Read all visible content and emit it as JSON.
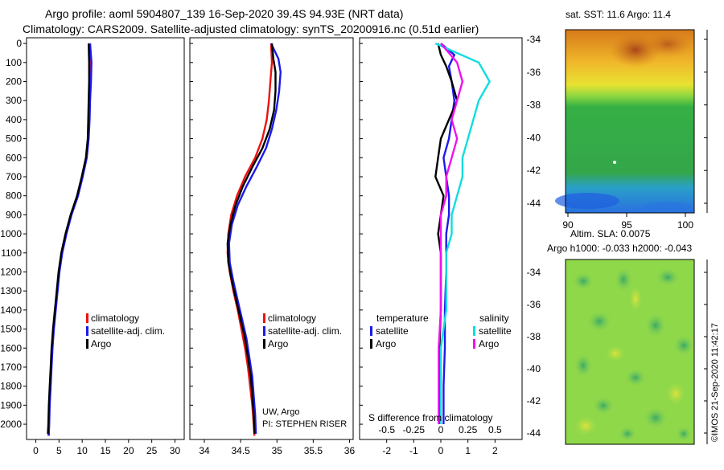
{
  "header": {
    "title_line1": "Argo profile: aoml 5904807_139 16-Sep-2020 39.4S 94.93E (NRT data)",
    "title_line2": "Climatology: CARS2009. Satellite-adjusted climatology: synTS_20200916.nc (0.51d earlier)"
  },
  "colors": {
    "climatology": "#ee1111",
    "satellite": "#1a1aee",
    "argo": "#000000",
    "satellite_s": "#11dddd",
    "argo_s": "#ee11ee"
  },
  "legend_a": {
    "clim": "climatology",
    "sat": "satellite-adj. clim.",
    "argo": "Argo"
  },
  "legend_c": {
    "temp_head": "temperature",
    "sal_head": "salinity",
    "sat": "satellite",
    "argo": "Argo",
    "sat_s": "satellite",
    "argo_s": "Argo"
  },
  "annotations": {
    "uw": "UW, Argo",
    "pi": "PI: STEPHEN RISER",
    "sdiff": "S difference from climatology"
  },
  "sst_panel": {
    "title": "sat. SST: 11.6 Argo: 11.4",
    "xticks": [
      "90",
      "95",
      "100"
    ],
    "yticks": [
      "-34",
      "-36",
      "-38",
      "-40",
      "-42",
      "-44"
    ]
  },
  "sla_panel": {
    "title1": "Altim. SLA: 0.0075",
    "title2": "Argo h1000: -0.033 h2000: -0.043",
    "yticks": [
      "-34",
      "-36",
      "-38",
      "-40",
      "-42",
      "-44"
    ],
    "credit": "©IMOS 21-Sep-2020 11:42:17"
  },
  "chart_data": [
    {
      "type": "line",
      "name": "temperature-profile",
      "xlabel": "",
      "ylabel": "",
      "xlim": [
        -2,
        32
      ],
      "ylim": [
        2080,
        -30
      ],
      "xticks": [
        "0",
        "5",
        "10",
        "15",
        "20",
        "25",
        "30"
      ],
      "yticks": [
        "0",
        "100",
        "200",
        "300",
        "400",
        "500",
        "600",
        "700",
        "800",
        "900",
        "1000",
        "1100",
        "1200",
        "1300",
        "1400",
        "1500",
        "1600",
        "1700",
        "1800",
        "1900",
        "2000"
      ],
      "series": [
        {
          "name": "climatology",
          "points": [
            [
              11.6,
              0
            ],
            [
              11.6,
              100
            ],
            [
              11.6,
              200
            ],
            [
              11.5,
              300
            ],
            [
              11.4,
              400
            ],
            [
              11.3,
              500
            ],
            [
              10.9,
              600
            ],
            [
              10.0,
              700
            ],
            [
              9.0,
              800
            ],
            [
              7.6,
              900
            ],
            [
              6.5,
              1000
            ],
            [
              5.6,
              1100
            ],
            [
              5.0,
              1200
            ],
            [
              4.6,
              1300
            ],
            [
              4.2,
              1400
            ],
            [
              3.8,
              1500
            ],
            [
              3.5,
              1600
            ],
            [
              3.3,
              1700
            ],
            [
              3.1,
              1800
            ],
            [
              2.9,
              1900
            ],
            [
              2.8,
              2000
            ],
            [
              2.7,
              2060
            ]
          ]
        },
        {
          "name": "satellite-adj. clim.",
          "points": [
            [
              11.7,
              0
            ],
            [
              12.0,
              100
            ],
            [
              11.9,
              200
            ],
            [
              11.7,
              300
            ],
            [
              11.6,
              400
            ],
            [
              11.4,
              500
            ],
            [
              11.0,
              600
            ],
            [
              10.1,
              700
            ],
            [
              9.1,
              800
            ],
            [
              7.7,
              900
            ],
            [
              6.6,
              1000
            ],
            [
              5.7,
              1100
            ],
            [
              5.1,
              1200
            ],
            [
              4.7,
              1300
            ],
            [
              4.3,
              1400
            ],
            [
              3.9,
              1500
            ],
            [
              3.6,
              1600
            ],
            [
              3.4,
              1700
            ],
            [
              3.2,
              1800
            ],
            [
              3.0,
              1900
            ],
            [
              2.9,
              2000
            ],
            [
              2.8,
              2060
            ]
          ]
        },
        {
          "name": "Argo",
          "points": [
            [
              11.4,
              0
            ],
            [
              11.5,
              100
            ],
            [
              11.5,
              200
            ],
            [
              11.4,
              300
            ],
            [
              11.3,
              400
            ],
            [
              11.2,
              500
            ],
            [
              10.8,
              600
            ],
            [
              9.9,
              700
            ],
            [
              8.9,
              800
            ],
            [
              7.5,
              900
            ],
            [
              6.4,
              1000
            ],
            [
              5.5,
              1100
            ],
            [
              4.9,
              1200
            ],
            [
              4.5,
              1300
            ],
            [
              4.1,
              1400
            ],
            [
              3.7,
              1500
            ],
            [
              3.4,
              1600
            ],
            [
              3.2,
              1700
            ],
            [
              3.0,
              1800
            ],
            [
              2.8,
              1900
            ],
            [
              2.7,
              2000
            ],
            [
              2.6,
              2050
            ]
          ]
        }
      ]
    },
    {
      "type": "line",
      "name": "salinity-profile",
      "xlim": [
        33.8,
        36.05
      ],
      "ylim": [
        2080,
        -30
      ],
      "xticks": [
        "34",
        "34.5",
        "35",
        "35.5",
        "36"
      ],
      "series": [
        {
          "name": "climatology",
          "points": [
            [
              34.92,
              0
            ],
            [
              34.93,
              100
            ],
            [
              34.91,
              200
            ],
            [
              34.89,
              300
            ],
            [
              34.86,
              400
            ],
            [
              34.8,
              500
            ],
            [
              34.7,
              600
            ],
            [
              34.56,
              700
            ],
            [
              34.45,
              800
            ],
            [
              34.37,
              900
            ],
            [
              34.33,
              1000
            ],
            [
              34.32,
              1100
            ],
            [
              34.35,
              1200
            ],
            [
              34.4,
              1300
            ],
            [
              34.46,
              1400
            ],
            [
              34.51,
              1500
            ],
            [
              34.56,
              1600
            ],
            [
              34.6,
              1700
            ],
            [
              34.63,
              1800
            ],
            [
              34.66,
              1900
            ],
            [
              34.68,
              2000
            ],
            [
              34.69,
              2060
            ]
          ]
        },
        {
          "name": "satellite-adj. clim.",
          "points": [
            [
              34.92,
              0
            ],
            [
              35.02,
              80
            ],
            [
              35.05,
              150
            ],
            [
              35.03,
              250
            ],
            [
              34.99,
              350
            ],
            [
              34.93,
              450
            ],
            [
              34.85,
              550
            ],
            [
              34.72,
              650
            ],
            [
              34.58,
              750
            ],
            [
              34.46,
              850
            ],
            [
              34.38,
              950
            ],
            [
              34.34,
              1050
            ],
            [
              34.35,
              1150
            ],
            [
              34.4,
              1250
            ],
            [
              34.46,
              1350
            ],
            [
              34.52,
              1450
            ],
            [
              34.58,
              1550
            ],
            [
              34.62,
              1650
            ],
            [
              34.66,
              1750
            ],
            [
              34.68,
              1850
            ],
            [
              34.7,
              1950
            ],
            [
              34.71,
              2050
            ]
          ]
        },
        {
          "name": "Argo",
          "points": [
            [
              34.93,
              0
            ],
            [
              34.95,
              80
            ],
            [
              34.98,
              150
            ],
            [
              34.98,
              250
            ],
            [
              34.96,
              350
            ],
            [
              34.9,
              450
            ],
            [
              34.8,
              550
            ],
            [
              34.66,
              650
            ],
            [
              34.53,
              750
            ],
            [
              34.43,
              850
            ],
            [
              34.36,
              950
            ],
            [
              34.32,
              1050
            ],
            [
              34.33,
              1150
            ],
            [
              34.38,
              1250
            ],
            [
              34.44,
              1350
            ],
            [
              34.5,
              1450
            ],
            [
              34.56,
              1550
            ],
            [
              34.6,
              1650
            ],
            [
              34.64,
              1750
            ],
            [
              34.66,
              1850
            ],
            [
              34.68,
              1950
            ],
            [
              34.69,
              2050
            ]
          ]
        }
      ]
    },
    {
      "type": "line",
      "name": "difference-profile",
      "xlim": [
        -3,
        3
      ],
      "ylim": [
        2080,
        -30
      ],
      "xticks": [
        "-2",
        "-1",
        "0",
        "1",
        "2"
      ],
      "xticks_s": [
        "-0.5",
        "-0.25",
        "0",
        "0.25",
        "0.5"
      ],
      "series": [
        {
          "name": "satellite (temperature)",
          "points": [
            [
              0.0,
              0
            ],
            [
              0.5,
              60
            ],
            [
              0.3,
              120
            ],
            [
              0.4,
              200
            ],
            [
              0.5,
              300
            ],
            [
              0.4,
              400
            ],
            [
              0.3,
              500
            ],
            [
              0.1,
              600
            ],
            [
              0.2,
              700
            ],
            [
              0.3,
              800
            ],
            [
              0.3,
              900
            ],
            [
              0.2,
              1000
            ],
            [
              0.2,
              1100
            ],
            [
              0.2,
              1200
            ],
            [
              0.15,
              1400
            ],
            [
              0.15,
              1600
            ],
            [
              0.1,
              1800
            ],
            [
              0.1,
              2000
            ]
          ]
        },
        {
          "name": "Argo (temperature)",
          "points": [
            [
              -0.1,
              0
            ],
            [
              0.0,
              60
            ],
            [
              0.2,
              120
            ],
            [
              0.4,
              200
            ],
            [
              0.6,
              300
            ],
            [
              0.3,
              400
            ],
            [
              0.0,
              500
            ],
            [
              -0.1,
              600
            ],
            [
              -0.2,
              700
            ],
            [
              0.1,
              800
            ],
            [
              0.0,
              900
            ],
            [
              -0.1,
              1000
            ],
            [
              0.0,
              1100
            ],
            [
              0.0,
              1200
            ],
            [
              0.0,
              1400
            ],
            [
              -0.05,
              1600
            ],
            [
              -0.05,
              1800
            ],
            [
              -0.05,
              2000
            ]
          ]
        },
        {
          "name": "satellite (salinity)",
          "points": [
            [
              -0.05,
              0
            ],
            [
              0.35,
              100
            ],
            [
              0.45,
              200
            ],
            [
              0.35,
              300
            ],
            [
              0.3,
              400
            ],
            [
              0.25,
              500
            ],
            [
              0.2,
              600
            ],
            [
              0.2,
              700
            ],
            [
              0.15,
              800
            ],
            [
              0.1,
              900
            ],
            [
              0.1,
              1000
            ],
            [
              0.05,
              1100
            ],
            [
              0.05,
              1200
            ],
            [
              0.05,
              1400
            ],
            [
              0.0,
              1600
            ],
            [
              0.0,
              1800
            ],
            [
              0.0,
              2000
            ]
          ]
        },
        {
          "name": "Argo (salinity)",
          "points": [
            [
              0.0,
              0
            ],
            [
              0.15,
              100
            ],
            [
              0.2,
              200
            ],
            [
              0.15,
              300
            ],
            [
              0.1,
              400
            ],
            [
              0.15,
              500
            ],
            [
              0.1,
              600
            ],
            [
              0.05,
              700
            ],
            [
              0.05,
              800
            ],
            [
              0.0,
              900
            ],
            [
              0.0,
              1000
            ],
            [
              0.0,
              1100
            ],
            [
              0.0,
              1200
            ],
            [
              0.0,
              1400
            ],
            [
              -0.02,
              1600
            ],
            [
              -0.02,
              1800
            ],
            [
              -0.02,
              2000
            ]
          ]
        }
      ]
    }
  ]
}
